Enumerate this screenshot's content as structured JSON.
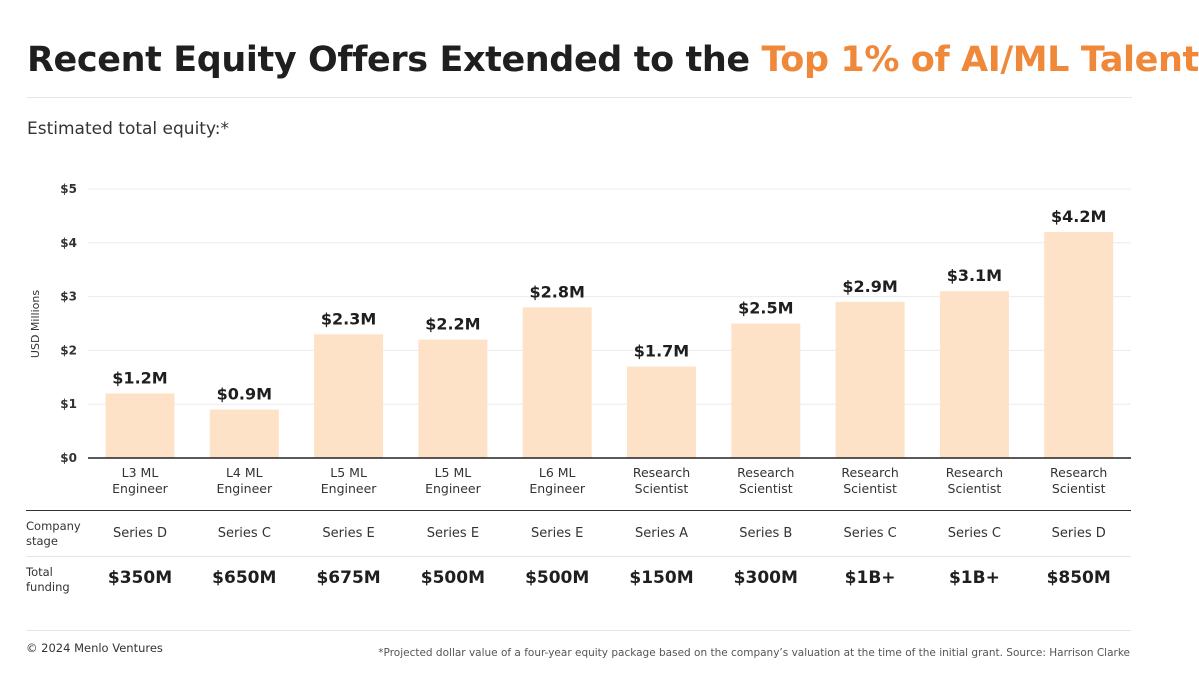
{
  "title": {
    "main": "Recent Equity Offers Extended to the ",
    "accent": "Top 1% of AI/ML Talent"
  },
  "subtitle": "Estimated total equity:*",
  "colors": {
    "accent": "#f0883a",
    "bar": "#fde2c8",
    "text": "#1f1f1f",
    "grid": "#ececec"
  },
  "chart_data": {
    "type": "bar",
    "title": "Recent Equity Offers Extended to the Top 1% of AI/ML Talent",
    "subtitle": "Estimated total equity:*",
    "xlabel": "",
    "ylabel": "USD Millions",
    "ylim": [
      0,
      5
    ],
    "yticks": [
      "$0",
      "$1",
      "$2",
      "$3",
      "$4",
      "$5"
    ],
    "grid": true,
    "categories": [
      [
        "L3 ML",
        "Engineer"
      ],
      [
        "L4 ML",
        "Engineer"
      ],
      [
        "L5 ML",
        "Engineer"
      ],
      [
        "L5 ML",
        "Engineer"
      ],
      [
        "L6 ML",
        "Engineer"
      ],
      [
        "Research",
        "Scientist"
      ],
      [
        "Research",
        "Scientist"
      ],
      [
        "Research",
        "Scientist"
      ],
      [
        "Research",
        "Scientist"
      ],
      [
        "Research",
        "Scientist"
      ]
    ],
    "values": [
      1.2,
      0.9,
      2.3,
      2.2,
      2.8,
      1.7,
      2.5,
      2.9,
      3.1,
      4.2
    ],
    "data_labels": [
      "$1.2M",
      "$0.9M",
      "$2.3M",
      "$2.2M",
      "$2.8M",
      "$1.7M",
      "$2.5M",
      "$2.9M",
      "$3.1M",
      "$4.2M"
    ]
  },
  "table": {
    "stage_header": [
      "Company",
      "stage"
    ],
    "funding_header": [
      "Total",
      "funding"
    ],
    "stages": [
      "Series D",
      "Series C",
      "Series E",
      "Series E",
      "Series E",
      "Series A",
      "Series B",
      "Series C",
      "Series C",
      "Series D"
    ],
    "funding": [
      "$350M",
      "$650M",
      "$675M",
      "$500M",
      "$500M",
      "$150M",
      "$300M",
      "$1B+",
      "$1B+",
      "$850M"
    ]
  },
  "footer": {
    "copyright": "© 2024 Menlo Ventures",
    "note": "*Projected dollar value of a four-year equity package based on the company’s valuation at the time of the initial grant. Source: Harrison Clarke"
  }
}
